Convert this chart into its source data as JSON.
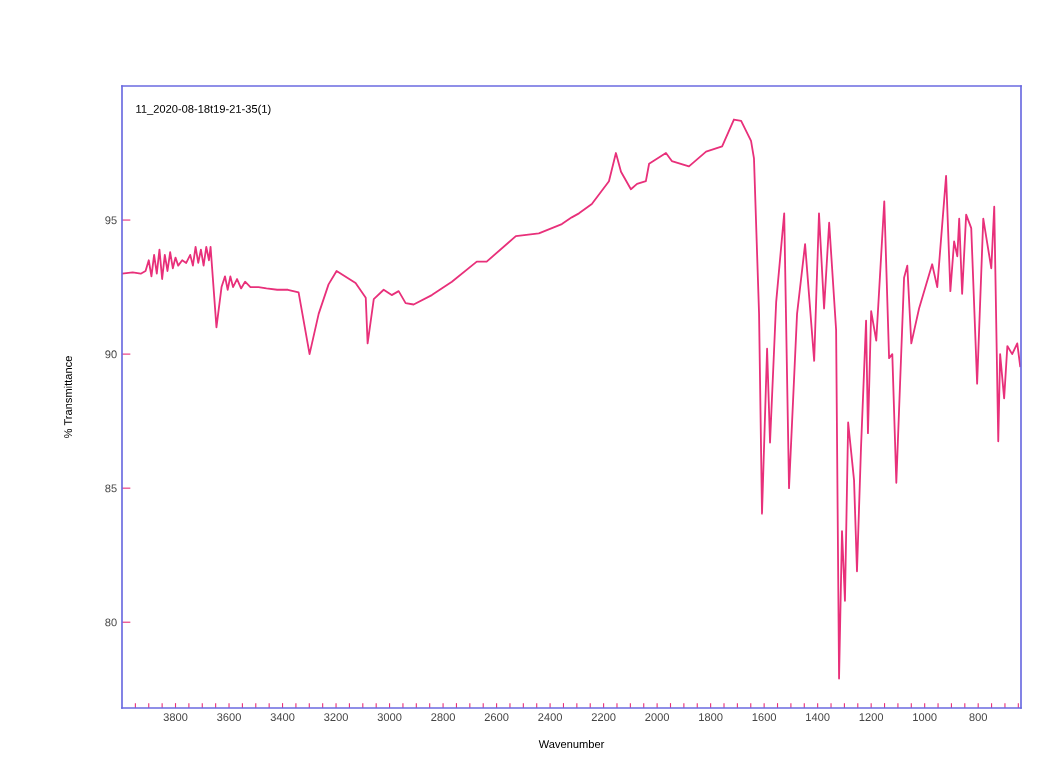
{
  "chart_data": {
    "type": "line",
    "xlabel": "Wavenumber",
    "ylabel": "% Transmittance",
    "annotations": [
      "11_2020-08-18t19-21-35(1)"
    ],
    "xlim": [
      4000,
      640
    ],
    "ylim": [
      76.8,
      100
    ],
    "xticks": [
      3800,
      3600,
      3400,
      3200,
      3000,
      2800,
      2600,
      2400,
      2200,
      2000,
      1800,
      1600,
      1400,
      1200,
      1000,
      800,
      {
        "value": 3950,
        "label": null
      },
      {
        "value": 3900,
        "label": null
      },
      {
        "value": 3850,
        "label": null
      },
      {
        "value": 3750,
        "label": null
      },
      {
        "value": 3700,
        "label": null
      },
      {
        "value": 3650,
        "label": null
      },
      {
        "value": 3550,
        "label": null
      },
      {
        "value": 3500,
        "label": null
      },
      {
        "value": 3450,
        "label": null
      },
      {
        "value": 3350,
        "label": null
      },
      {
        "value": 3300,
        "label": null
      },
      {
        "value": 3250,
        "label": null
      },
      {
        "value": 3150,
        "label": null
      },
      {
        "value": 3100,
        "label": null
      },
      {
        "value": 3050,
        "label": null
      },
      {
        "value": 2950,
        "label": null
      },
      {
        "value": 2900,
        "label": null
      },
      {
        "value": 2850,
        "label": null
      },
      {
        "value": 2750,
        "label": null
      },
      {
        "value": 2700,
        "label": null
      },
      {
        "value": 2650,
        "label": null
      },
      {
        "value": 2550,
        "label": null
      },
      {
        "value": 2500,
        "label": null
      },
      {
        "value": 2450,
        "label": null
      },
      {
        "value": 2350,
        "label": null
      },
      {
        "value": 2300,
        "label": null
      },
      {
        "value": 2250,
        "label": null
      },
      {
        "value": 2150,
        "label": null
      },
      {
        "value": 2100,
        "label": null
      },
      {
        "value": 2050,
        "label": null
      },
      {
        "value": 1950,
        "label": null
      },
      {
        "value": 1900,
        "label": null
      },
      {
        "value": 1850,
        "label": null
      },
      {
        "value": 1750,
        "label": null
      },
      {
        "value": 1700,
        "label": null
      },
      {
        "value": 1650,
        "label": null
      },
      {
        "value": 1550,
        "label": null
      },
      {
        "value": 1500,
        "label": null
      },
      {
        "value": 1450,
        "label": null
      },
      {
        "value": 1350,
        "label": null
      },
      {
        "value": 1300,
        "label": null
      },
      {
        "value": 1250,
        "label": null
      },
      {
        "value": 1150,
        "label": null
      },
      {
        "value": 1100,
        "label": null
      },
      {
        "value": 1050,
        "label": null
      },
      {
        "value": 950,
        "label": null
      },
      {
        "value": 900,
        "label": null
      },
      {
        "value": 850,
        "label": null
      },
      {
        "value": 750,
        "label": null
      },
      {
        "value": 700,
        "label": null
      },
      {
        "value": 650,
        "label": null
      }
    ],
    "yticks": [
      80,
      85,
      90,
      95
    ],
    "grid": false,
    "marker": "none",
    "line_style": "solid",
    "series": [
      {
        "color": "#e8307a",
        "x": [
          4000,
          3960,
          3930,
          3912,
          3900,
          3890,
          3880,
          3870,
          3860,
          3850,
          3840,
          3830,
          3820,
          3810,
          3800,
          3790,
          3775,
          3760,
          3745,
          3735,
          3725,
          3715,
          3705,
          3695,
          3685,
          3675,
          3669,
          3647,
          3628,
          3615,
          3605,
          3595,
          3585,
          3570,
          3555,
          3540,
          3520,
          3490,
          3460,
          3420,
          3380,
          3340,
          3299,
          3265,
          3228,
          3198,
          3127,
          3089,
          3082,
          3059,
          3022,
          2992,
          2966,
          2940,
          2910,
          2842,
          2767,
          2674,
          2637,
          2528,
          2442,
          2356,
          2319,
          2292,
          2244,
          2180,
          2154,
          2135,
          2098,
          2075,
          2042,
          2030,
          1967,
          1945,
          1881,
          1817,
          1757,
          1713,
          1686,
          1649,
          1638,
          1619,
          1608,
          1589,
          1578,
          1555,
          1525,
          1507,
          1477,
          1447,
          1413,
          1395,
          1376,
          1357,
          1331,
          1320,
          1309,
          1298,
          1286,
          1264,
          1253,
          1238,
          1219,
          1212,
          1200,
          1181,
          1151,
          1133,
          1121,
          1106,
          1077,
          1065,
          1050,
          1021,
          972,
          953,
          920,
          904,
          890,
          878,
          871,
          860,
          845,
          826,
          804,
          781,
          751,
          740,
          725,
          718,
          703,
          691,
          673,
          654,
          643
        ],
        "values": [
          93.0,
          93.05,
          93.0,
          93.1,
          93.5,
          92.9,
          93.7,
          93.0,
          93.9,
          92.8,
          93.7,
          93.1,
          93.8,
          93.2,
          93.6,
          93.3,
          93.5,
          93.4,
          93.7,
          93.3,
          94.0,
          93.4,
          93.9,
          93.3,
          94.0,
          93.5,
          94.0,
          91.0,
          92.5,
          92.9,
          92.4,
          92.9,
          92.5,
          92.8,
          92.45,
          92.7,
          92.5,
          92.5,
          92.45,
          92.4,
          92.4,
          92.3,
          90.0,
          91.5,
          92.6,
          93.1,
          92.65,
          92.1,
          90.4,
          92.05,
          92.4,
          92.2,
          92.35,
          91.9,
          91.85,
          92.2,
          92.7,
          93.45,
          93.45,
          94.4,
          94.5,
          94.85,
          95.1,
          95.25,
          95.6,
          96.45,
          97.5,
          96.8,
          96.15,
          96.35,
          96.45,
          97.1,
          97.5,
          97.2,
          97.0,
          97.55,
          97.75,
          98.75,
          98.7,
          97.95,
          97.3,
          91.5,
          84.05,
          90.2,
          86.7,
          91.95,
          95.25,
          85.0,
          91.5,
          94.1,
          89.75,
          95.25,
          91.7,
          94.9,
          90.9,
          77.9,
          83.4,
          80.8,
          87.45,
          85.3,
          81.9,
          86.5,
          91.25,
          87.05,
          91.6,
          90.5,
          95.7,
          89.85,
          90.0,
          85.2,
          92.85,
          93.3,
          90.4,
          91.7,
          93.35,
          92.5,
          96.65,
          92.35,
          94.2,
          93.65,
          95.05,
          92.25,
          95.2,
          94.7,
          88.9,
          95.05,
          93.2,
          95.5,
          86.75,
          90.0,
          88.35,
          90.3,
          90.0,
          90.4,
          89.55
        ]
      }
    ]
  }
}
